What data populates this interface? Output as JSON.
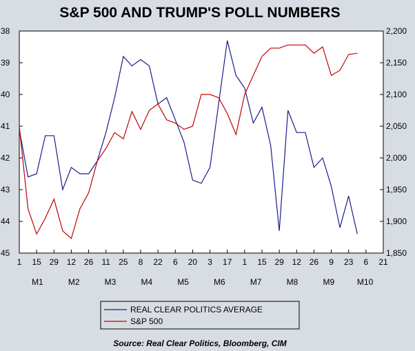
{
  "chart_data": {
    "type": "line",
    "title": "S&P 500 AND TRUMP'S POLL NUMBERS",
    "source": "Source:  Real Clear Politics, Bloomberg, CIM",
    "left_axis": {
      "ylim": [
        45,
        38
      ],
      "inverted": true,
      "ticks": [
        "38",
        "39",
        "40",
        "41",
        "42",
        "43",
        "44",
        "45"
      ]
    },
    "right_axis": {
      "ylim": [
        1850,
        2200
      ],
      "ticks": [
        "2,200",
        "2,150",
        "2,100",
        "2,050",
        "2,000",
        "1,950",
        "1,900",
        "1,850"
      ]
    },
    "x_day_labels": [
      "1",
      "15",
      "29",
      "12",
      "26",
      "11",
      "25",
      "8",
      "22",
      "6",
      "20",
      "3",
      "17",
      "1",
      "15",
      "29",
      "12",
      "26",
      "9",
      "23",
      "6",
      "21"
    ],
    "x_month_labels": [
      "M1",
      "M2",
      "M3",
      "M4",
      "M5",
      "M6",
      "M7",
      "M8",
      "M9",
      "M10"
    ],
    "grid": false,
    "legend_position": "bottom",
    "series": [
      {
        "name": "REAL CLEAR POLITICS AVERAGE",
        "axis": "left",
        "color": "#1a1a8c",
        "x": [
          0,
          0.5,
          1,
          1.5,
          2,
          2.5,
          3,
          3.5,
          4,
          4.5,
          5,
          5.5,
          6,
          6.5,
          7,
          7.5,
          8,
          8.5,
          9,
          9.5,
          10,
          10.5,
          11,
          11.5,
          12,
          12.5,
          13,
          13.5,
          14,
          14.5,
          15,
          15.5,
          16,
          16.5,
          17,
          17.5,
          18,
          18.5,
          19,
          19.5,
          20
        ],
        "values": [
          41.1,
          42.6,
          42.5,
          41.3,
          41.3,
          43.0,
          42.3,
          42.5,
          42.5,
          42.1,
          41.2,
          40.1,
          38.8,
          39.1,
          38.9,
          39.1,
          40.3,
          40.1,
          40.8,
          41.5,
          42.7,
          42.8,
          42.3,
          40.3,
          38.3,
          39.4,
          39.8,
          40.9,
          40.4,
          41.6,
          44.3,
          40.5,
          41.2,
          41.2,
          42.3,
          42.0,
          42.9,
          44.2,
          43.2,
          44.4,
          null
        ]
      },
      {
        "name": "S&P 500",
        "axis": "right",
        "color": "#c00000",
        "x": [
          0,
          0.5,
          1,
          1.5,
          2,
          2.5,
          3,
          3.5,
          4,
          4.5,
          5,
          5.5,
          6,
          6.5,
          7,
          7.5,
          8,
          8.5,
          9,
          9.5,
          10,
          10.5,
          11,
          11.5,
          12,
          12.5,
          13,
          13.5,
          14,
          14.5,
          15,
          15.5,
          16,
          16.5,
          17,
          17.5,
          18,
          18.5,
          19,
          19.5,
          20
        ],
        "values": [
          2050,
          1920,
          1880,
          1905,
          1935,
          1885,
          1873,
          1920,
          1945,
          1995,
          2015,
          2040,
          2030,
          2073,
          2045,
          2075,
          2085,
          2060,
          2055,
          2045,
          2050,
          2100,
          2100,
          2095,
          2070,
          2037,
          2100,
          2130,
          2160,
          2173,
          2173,
          2178,
          2178,
          2178,
          2165,
          2175,
          2130,
          2138,
          2163,
          2165,
          null
        ]
      }
    ]
  }
}
